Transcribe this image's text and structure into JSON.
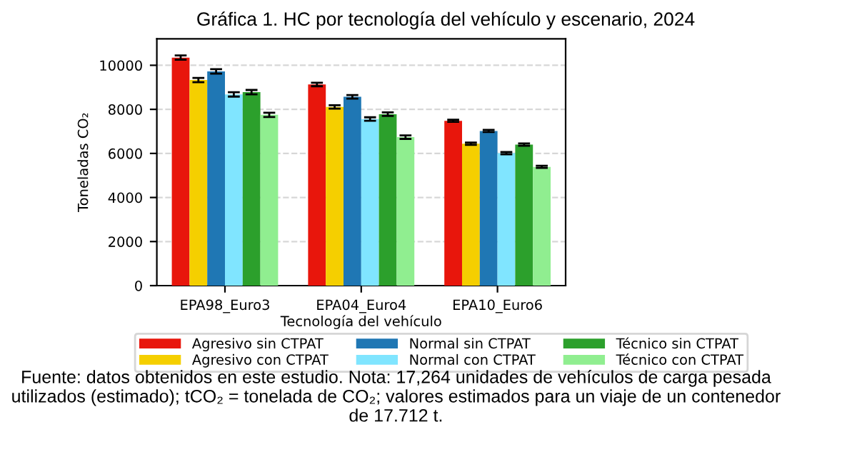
{
  "chart_data": {
    "type": "bar",
    "title": "Gráfica 1. HC por tecnología del vehículo y escenario, 2024",
    "xlabel": "Tecnología del vehículo",
    "ylabel": "Toneladas CO₂",
    "categories": [
      "EPA98_Euro3",
      "EPA04_Euro4",
      "EPA10_Euro6"
    ],
    "series": [
      {
        "name": "Agresivo sin CTPAT",
        "color": "#e8160c",
        "values": [
          10350,
          9130,
          7480
        ],
        "errors": [
          100,
          80,
          50
        ]
      },
      {
        "name": "Agresivo con CTPAT",
        "color": "#f5cf00",
        "values": [
          9330,
          8110,
          6440
        ],
        "errors": [
          100,
          80,
          50
        ]
      },
      {
        "name": "Normal sin CTPAT",
        "color": "#1f77b4",
        "values": [
          9720,
          8570,
          7020
        ],
        "errors": [
          100,
          80,
          50
        ]
      },
      {
        "name": "Normal con CTPAT",
        "color": "#80e5ff",
        "values": [
          8680,
          7560,
          6010
        ],
        "errors": [
          100,
          80,
          50
        ]
      },
      {
        "name": "Técnico sin CTPAT",
        "color": "#2ca02c",
        "values": [
          8780,
          7780,
          6400
        ],
        "errors": [
          100,
          80,
          50
        ]
      },
      {
        "name": "Técnico con CTPAT",
        "color": "#90ee90",
        "values": [
          7750,
          6740,
          5390
        ],
        "errors": [
          100,
          80,
          50
        ]
      }
    ],
    "ylim": [
      0,
      11200
    ],
    "yticks": [
      0,
      2000,
      4000,
      6000,
      8000,
      10000
    ],
    "grid": "y",
    "legend": "bottom",
    "annotations": [
      "Fuente: datos obtenidos en este estudio. Nota: 17,264 unidades de vehículos de carga pesada utilizados (estimado); tCO₂ = tonelada de CO₂; valores estimados para un viaje de un contenedor de 17.712 t."
    ]
  }
}
